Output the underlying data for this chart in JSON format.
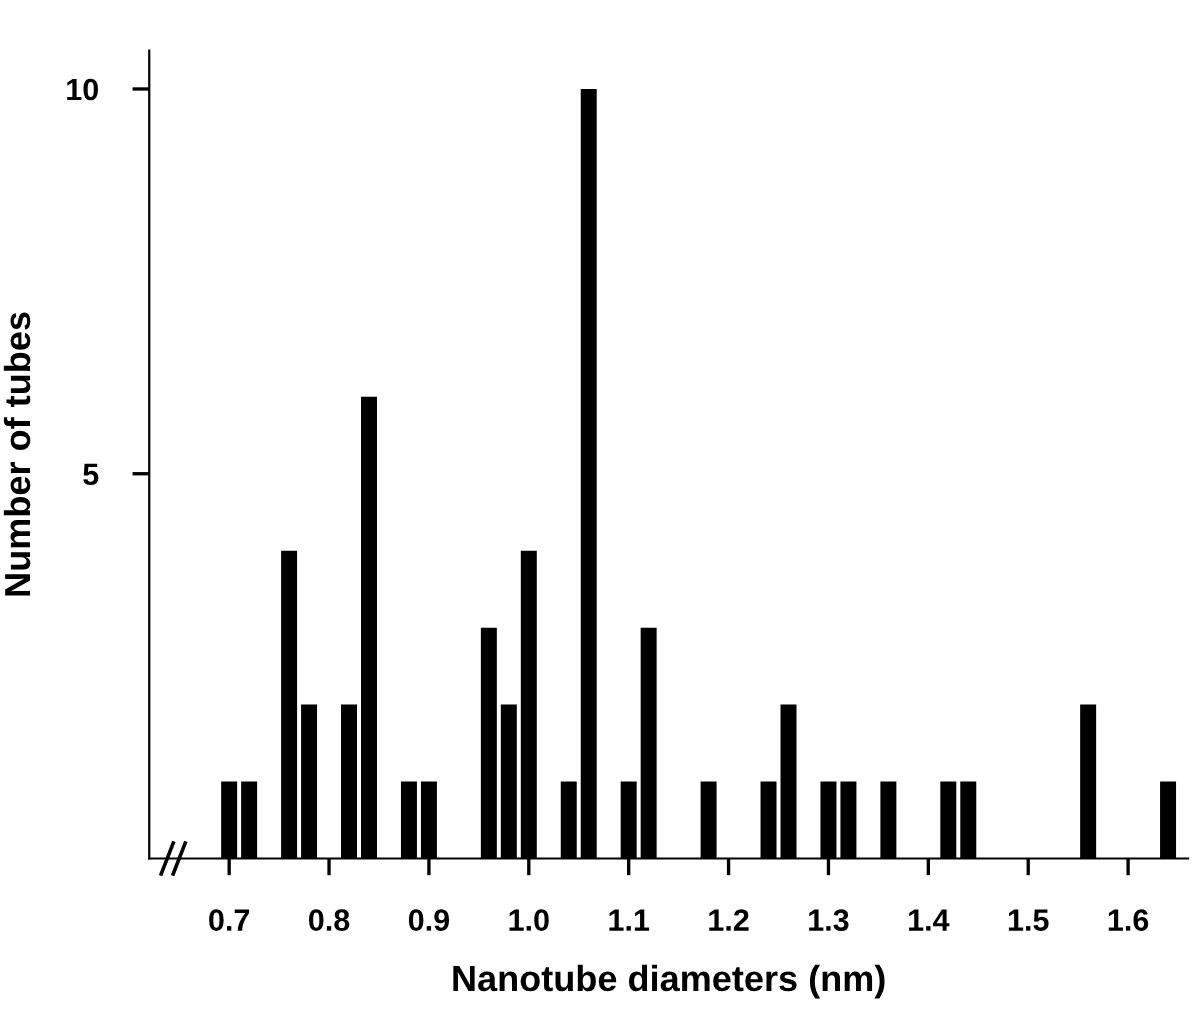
{
  "chart_data": {
    "type": "histogram",
    "xlabel": "Nanotube diameters (nm)",
    "ylabel": "Number of tubes",
    "bins": [
      0.69,
      0.71,
      0.73,
      0.75,
      0.77,
      0.79,
      0.81,
      0.83,
      0.85,
      0.87,
      0.89,
      0.91,
      0.93,
      0.95,
      0.97,
      0.99,
      1.01,
      1.03,
      1.05,
      1.07,
      1.09,
      1.11,
      1.13,
      1.15,
      1.17,
      1.19,
      1.21,
      1.23,
      1.25,
      1.27,
      1.29,
      1.31,
      1.33,
      1.35,
      1.37,
      1.39,
      1.41,
      1.43,
      1.45,
      1.47,
      1.49,
      1.51,
      1.53,
      1.55,
      1.57,
      1.59,
      1.61,
      1.63,
      1.65
    ],
    "values": [
      1,
      1,
      0,
      4,
      2,
      0,
      2,
      6,
      0,
      1,
      1,
      0,
      0,
      3,
      2,
      4,
      0,
      1,
      10,
      0,
      1,
      3,
      0,
      0,
      1,
      0,
      0,
      1,
      2,
      0,
      1,
      1,
      0,
      1,
      0,
      0,
      1,
      1,
      0,
      0,
      0,
      0,
      0,
      2,
      0,
      0,
      0,
      1
    ],
    "color": "#000000",
    "xlim": [
      0.62,
      1.66
    ],
    "ylim": [
      0,
      10.5
    ],
    "xticks": [
      {
        "value": 0.7,
        "label": "0.7"
      },
      {
        "value": 0.8,
        "label": "0.8"
      },
      {
        "value": 0.9,
        "label": "0.9"
      },
      {
        "value": 1.0,
        "label": "1.0"
      },
      {
        "value": 1.1,
        "label": "1.1"
      },
      {
        "value": 1.2,
        "label": "1.2"
      },
      {
        "value": 1.3,
        "label": "1.3"
      },
      {
        "value": 1.4,
        "label": "1.4"
      },
      {
        "value": 1.5,
        "label": "1.5"
      },
      {
        "value": 1.6,
        "label": "1.6"
      }
    ],
    "yticks": [
      5,
      10
    ],
    "grid": false
  }
}
